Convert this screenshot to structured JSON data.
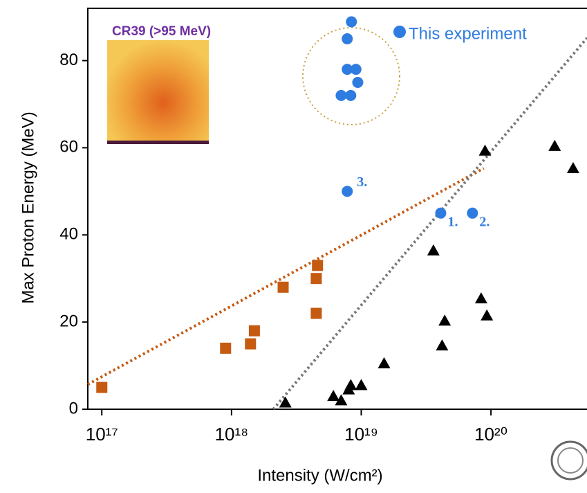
{
  "chart_data": {
    "type": "scatter",
    "x_label": "Intensity (W/cm²)",
    "y_label": "Max Proton Energy (MeV)",
    "xscale": "log",
    "xlim": [
      7.8e+16,
      5.5e+20
    ],
    "ylim": [
      0,
      92
    ],
    "xticks": [
      {
        "value": 1e+17,
        "label": "10¹⁷"
      },
      {
        "value": 1e+18,
        "label": "10¹⁸"
      },
      {
        "value": 1e+19,
        "label": "10¹⁹"
      },
      {
        "value": 1e+20,
        "label": "10²⁰"
      }
    ],
    "yticks": [
      0,
      20,
      40,
      60,
      80
    ],
    "grid": false,
    "legend": "top-right",
    "series": [
      {
        "color": "#c55a11",
        "marker": "square",
        "x": [
          1e+17,
          9e+17,
          1.4e+18,
          1.5e+18,
          2.5e+18,
          4.6e+18,
          4.5e+18,
          4.5e+18
        ],
        "values": [
          5,
          14,
          15,
          18,
          28,
          33,
          30,
          22
        ]
      },
      {
        "color": "#000000",
        "marker": "triangle",
        "x": [
          2.6e+18,
          6.1e+18,
          7e+18,
          8e+18,
          8.3e+18,
          1e+19,
          1.5e+19,
          3.6e+19,
          4.2e+19,
          4.4e+19,
          8.4e+19,
          9.3e+19,
          9e+19,
          3.1e+20,
          4.3e+20
        ],
        "values": [
          1.5,
          3,
          2,
          4.5,
          5.5,
          5.5,
          10.5,
          36.4,
          14.6,
          20.3,
          25.4,
          21.5,
          59.3,
          60.4,
          55.3
        ]
      },
      {
        "name": "This experiment",
        "color": "#2f7ce0",
        "marker": "circle",
        "x": [
          8.4e+18,
          7.8e+18,
          7.8e+18,
          9.1e+18,
          9.4e+18,
          7e+18,
          8.3e+18,
          7.8e+18,
          4.1e+19,
          7.2e+19
        ],
        "values": [
          88.9,
          85,
          78,
          78,
          75,
          72,
          72,
          50,
          45,
          45
        ]
      }
    ],
    "trend_lines": [
      {
        "color": "#c55a11",
        "x": [
          7.8e+16,
          8.8e+19
        ],
        "values": [
          5.7,
          55.3
        ]
      },
      {
        "color": "#777777",
        "x": [
          2.1e+18,
          5.5e+20
        ],
        "values": [
          0,
          85.2
        ]
      }
    ],
    "annotations": [
      "3.",
      "1.",
      "2."
    ],
    "inset_label": "CR39 (>95 MeV)"
  }
}
